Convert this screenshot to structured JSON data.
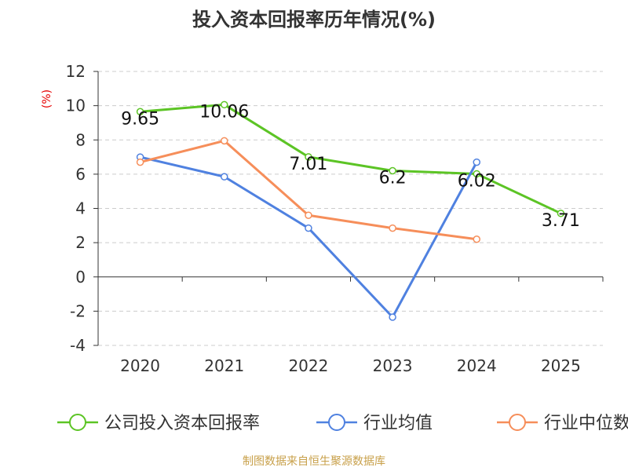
{
  "chart_data": {
    "type": "line",
    "title": "投入资本回报率历年情况(%)",
    "ylabel": "(%)",
    "xlabel": "",
    "categories": [
      "2020",
      "2021",
      "2022",
      "2023",
      "2024",
      "2025"
    ],
    "ylim": [
      -4,
      12
    ],
    "yticks": [
      -4,
      -2,
      0,
      2,
      4,
      6,
      8,
      10,
      12
    ],
    "grid": true,
    "legend_position": "bottom",
    "series": [
      {
        "name": "公司投入资本回报率",
        "color": "#5cc425",
        "values": [
          9.65,
          10.06,
          7.01,
          6.2,
          6.02,
          3.71
        ],
        "labels": [
          "9.65",
          "10.06",
          "7.01",
          "6.2",
          "6.02",
          "3.71"
        ],
        "show_labels": true
      },
      {
        "name": "行业均值",
        "color": "#4f81e0",
        "values": [
          7.0,
          5.85,
          2.85,
          -2.35,
          6.7,
          null
        ],
        "show_labels": false
      },
      {
        "name": "行业中位数",
        "color": "#f68e5a",
        "values": [
          6.7,
          7.95,
          3.6,
          2.85,
          2.2,
          null
        ],
        "show_labels": false
      }
    ],
    "source": "制图数据来自恒生聚源数据库"
  },
  "colors": {
    "title": "#333333",
    "axis_label": "#e60000",
    "tick_text": "#333333",
    "source_text": "#c8a04a",
    "grid": "#cccccc",
    "axis": "#333333"
  }
}
